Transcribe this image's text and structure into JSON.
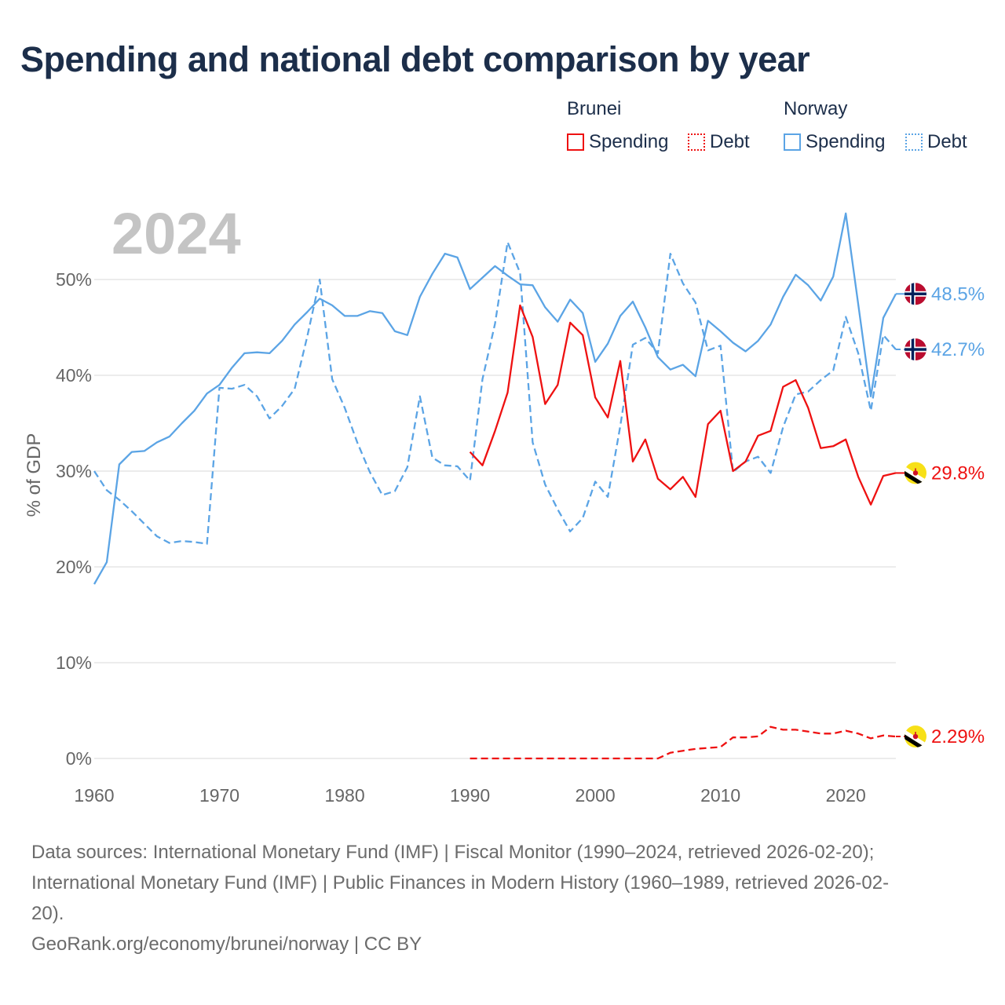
{
  "title": "Spending and national debt comparison by year",
  "legend": {
    "groups": [
      {
        "name": "Brunei",
        "color": "#ee1111",
        "spending_label": "Spending",
        "debt_label": "Debt"
      },
      {
        "name": "Norway",
        "color": "#5ba4e5",
        "spending_label": "Spending",
        "debt_label": "Debt"
      }
    ]
  },
  "footer": {
    "source_line_1": "Data sources: International Monetary Fund (IMF) | Fiscal Monitor (1990–2024, retrieved 2026-02-20);",
    "source_line_2": "International Monetary Fund (IMF) | Public Finances in Modern History (1960–1989, retrieved 2026-02-",
    "source_line_3": "20).",
    "credit": "GeoRank.org/economy/brunei/norway | CC BY"
  },
  "chart_data": {
    "type": "line",
    "year_label": "2024",
    "ylabel": "% of GDP",
    "xlim": [
      1960,
      2024
    ],
    "ylim": [
      0,
      57
    ],
    "x_ticks": [
      1960,
      1970,
      1980,
      1990,
      2000,
      2010,
      2020
    ],
    "y_ticks": [
      0,
      10,
      20,
      30,
      40,
      50
    ],
    "y_tick_labels": [
      "0%",
      "10%",
      "20%",
      "30%",
      "40%",
      "50%"
    ],
    "grid": true,
    "series": [
      {
        "id": "norway-spending",
        "name": "Norway Spending",
        "color": "#5ba4e5",
        "dashed": false,
        "end_label": "48.5%",
        "flag": "norway",
        "x": [
          1960,
          1961,
          1962,
          1963,
          1964,
          1965,
          1966,
          1967,
          1968,
          1969,
          1970,
          1971,
          1972,
          1973,
          1974,
          1975,
          1976,
          1977,
          1978,
          1979,
          1980,
          1981,
          1982,
          1983,
          1984,
          1985,
          1986,
          1987,
          1988,
          1989,
          1990,
          1991,
          1992,
          1993,
          1994,
          1995,
          1996,
          1997,
          1998,
          1999,
          2000,
          2001,
          2002,
          2003,
          2004,
          2005,
          2006,
          2007,
          2008,
          2009,
          2010,
          2011,
          2012,
          2013,
          2014,
          2015,
          2016,
          2017,
          2018,
          2019,
          2020,
          2021,
          2022,
          2023,
          2024
        ],
        "y": [
          18.2,
          20.5,
          30.7,
          32.0,
          32.1,
          33.0,
          33.6,
          35.0,
          36.3,
          38.1,
          39.0,
          40.8,
          42.3,
          42.4,
          42.3,
          43.6,
          45.3,
          46.6,
          48.0,
          47.3,
          46.2,
          46.2,
          46.7,
          46.5,
          44.6,
          44.2,
          48.2,
          50.6,
          52.7,
          52.3,
          49.0,
          50.2,
          51.4,
          50.4,
          49.5,
          49.4,
          47.1,
          45.6,
          47.9,
          46.5,
          41.4,
          43.3,
          46.2,
          47.7,
          45.0,
          41.9,
          40.6,
          41.1,
          39.9,
          45.7,
          44.6,
          43.4,
          42.5,
          43.6,
          45.3,
          48.2,
          50.5,
          49.4,
          47.8,
          50.3,
          56.9,
          47.4,
          37.8,
          46.0,
          48.5
        ]
      },
      {
        "id": "norway-debt",
        "name": "Norway Debt",
        "color": "#5ba4e5",
        "dashed": true,
        "end_label": "42.7%",
        "flag": "norway",
        "x": [
          1960,
          1961,
          1962,
          1963,
          1964,
          1965,
          1966,
          1967,
          1968,
          1969,
          1970,
          1971,
          1972,
          1973,
          1974,
          1975,
          1976,
          1977,
          1978,
          1979,
          1980,
          1981,
          1982,
          1983,
          1984,
          1985,
          1986,
          1987,
          1988,
          1989,
          1990,
          1991,
          1992,
          1993,
          1994,
          1995,
          1996,
          1997,
          1998,
          1999,
          2000,
          2001,
          2002,
          2003,
          2004,
          2005,
          2006,
          2007,
          2008,
          2009,
          2010,
          2011,
          2012,
          2013,
          2014,
          2015,
          2016,
          2017,
          2018,
          2019,
          2020,
          2021,
          2022,
          2023,
          2024
        ],
        "y": [
          30.0,
          28.0,
          27.0,
          25.8,
          24.5,
          23.2,
          22.5,
          22.7,
          22.6,
          22.4,
          38.7,
          38.6,
          39.0,
          37.8,
          35.5,
          36.8,
          38.6,
          44.0,
          50.0,
          39.6,
          36.6,
          33.0,
          29.9,
          27.5,
          27.9,
          30.4,
          37.8,
          31.4,
          30.6,
          30.5,
          29.0,
          39.6,
          45.4,
          53.9,
          50.7,
          33.0,
          28.6,
          26.0,
          23.7,
          25.1,
          28.9,
          27.3,
          34.7,
          43.2,
          43.9,
          42.3,
          52.7,
          49.6,
          47.6,
          42.6,
          43.1,
          29.9,
          31.0,
          31.5,
          29.8,
          34.6,
          38.0,
          38.3,
          39.5,
          40.5,
          46.1,
          42.3,
          36.3,
          44.2,
          42.7
        ]
      },
      {
        "id": "brunei-spending",
        "name": "Brunei Spending",
        "color": "#ee1111",
        "dashed": false,
        "end_label": "29.8%",
        "flag": "brunei",
        "x": [
          1990,
          1991,
          1992,
          1993,
          1994,
          1995,
          1996,
          1997,
          1998,
          1999,
          2000,
          2001,
          2002,
          2003,
          2004,
          2005,
          2006,
          2007,
          2008,
          2009,
          2010,
          2011,
          2012,
          2013,
          2014,
          2015,
          2016,
          2017,
          2018,
          2019,
          2020,
          2021,
          2022,
          2023,
          2024
        ],
        "y": [
          32.0,
          30.6,
          34.2,
          38.2,
          47.3,
          44.0,
          37.0,
          39.0,
          45.5,
          44.2,
          37.7,
          35.6,
          41.5,
          31.0,
          33.3,
          29.2,
          28.1,
          29.4,
          27.3,
          34.9,
          36.3,
          30.0,
          31.0,
          33.7,
          34.2,
          38.8,
          39.5,
          36.6,
          32.4,
          32.6,
          33.3,
          29.4,
          26.5,
          29.5,
          29.8
        ]
      },
      {
        "id": "brunei-debt",
        "name": "Brunei Debt",
        "color": "#ee1111",
        "dashed": true,
        "end_label": "2.29%",
        "flag": "brunei",
        "x": [
          1990,
          1991,
          1992,
          1993,
          1994,
          1995,
          1996,
          1997,
          1998,
          1999,
          2000,
          2001,
          2002,
          2003,
          2004,
          2005,
          2006,
          2007,
          2008,
          2009,
          2010,
          2011,
          2012,
          2013,
          2014,
          2015,
          2016,
          2017,
          2018,
          2019,
          2020,
          2021,
          2022,
          2023,
          2024
        ],
        "y": [
          0.0,
          0.0,
          0.0,
          0.0,
          0.0,
          0.0,
          0.0,
          0.0,
          0.0,
          0.0,
          0.0,
          0.0,
          0.0,
          0.0,
          0.0,
          0.0,
          0.6,
          0.8,
          1.0,
          1.1,
          1.2,
          2.2,
          2.2,
          2.3,
          3.3,
          3.0,
          3.0,
          2.8,
          2.6,
          2.6,
          2.9,
          2.6,
          2.1,
          2.4,
          2.29
        ]
      }
    ]
  }
}
